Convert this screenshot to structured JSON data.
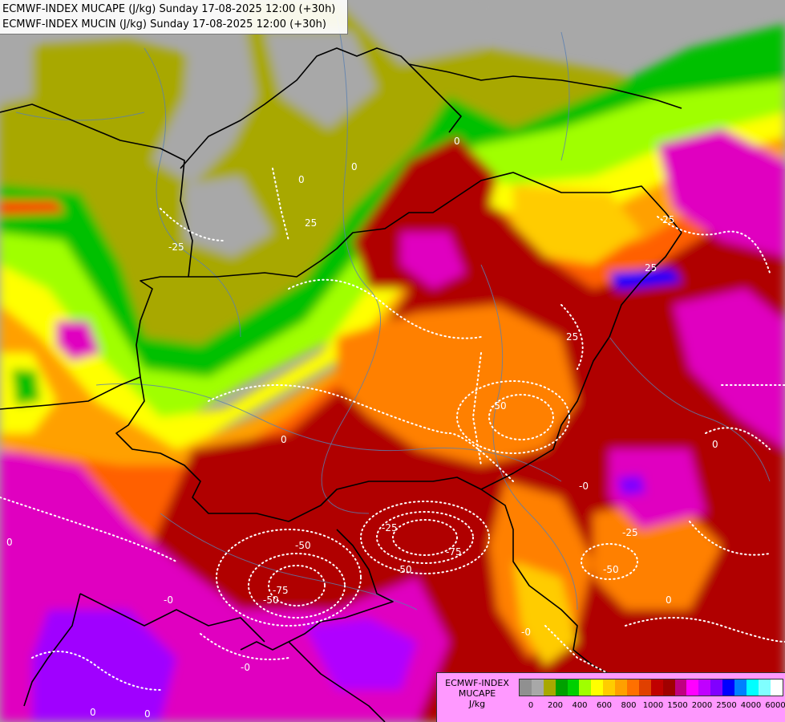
{
  "header": {
    "line1": "ECMWF-INDEX MUCAPE (J/kg) Sunday 17-08-2025 12:00 (+30h)",
    "line2": "ECMWF-INDEX MUCIN (J/kg) Sunday 17-08-2025 12:00 (+30h)"
  },
  "legend": {
    "title_line1": "ECMWF-INDEX",
    "title_line2": "MUCAPE",
    "unit": "J/kg",
    "colors": [
      "#909090",
      "#a8a8a8",
      "#a8a800",
      "#00a000",
      "#00d000",
      "#a0ff00",
      "#ffff00",
      "#ffcc00",
      "#ffa000",
      "#ff7000",
      "#e04000",
      "#c00000",
      "#a00000",
      "#c00080",
      "#ff00ff",
      "#c000ff",
      "#8000ff",
      "#0000ff",
      "#0080ff",
      "#00ffff",
      "#80ffff",
      "#ffffff"
    ],
    "tick_labels": [
      "0",
      "200",
      "400",
      "600",
      "800",
      "1000",
      "1500",
      "2000",
      "2500",
      "4000",
      "6000"
    ]
  },
  "contour_labels": [
    "0",
    "0",
    "0",
    "0",
    "25",
    "25",
    "25",
    "25",
    "-25",
    "-25",
    "-25",
    "-50",
    "-50",
    "-50",
    "-50",
    "-50",
    "-75",
    "-75",
    "-0",
    "-0",
    "-0",
    "-0",
    "0",
    "0",
    "0",
    "0",
    "0"
  ]
}
